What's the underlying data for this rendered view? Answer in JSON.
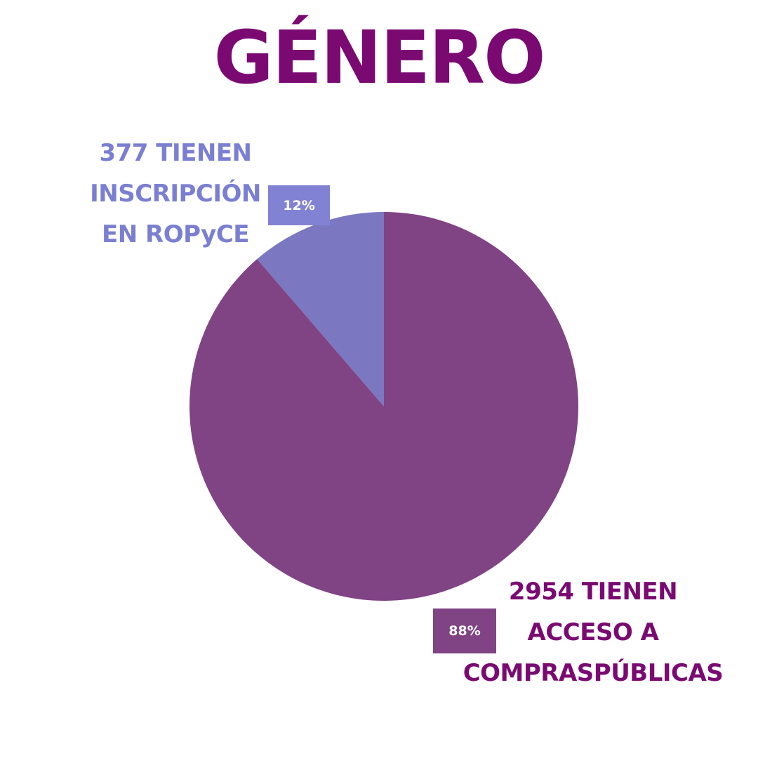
{
  "header": {
    "title": "GÉNERO"
  },
  "chart_data": {
    "type": "pie",
    "title": "GÉNERO",
    "slices": [
      {
        "value": 377,
        "percent": 12,
        "percent_label": "12%",
        "label_lines": [
          "377 TIENEN",
          "INSCRIPCIÓN",
          "EN ROPyCE"
        ],
        "color": "#7b78c1",
        "label_color": "#7b7fd1"
      },
      {
        "value": 2954,
        "percent": 88,
        "percent_label": "88%",
        "label_lines": [
          "2954 TIENEN",
          "ACCESO A",
          "COMPRASPÚBLICAS"
        ],
        "color": "#804384",
        "label_color": "#7a0a72"
      }
    ]
  }
}
